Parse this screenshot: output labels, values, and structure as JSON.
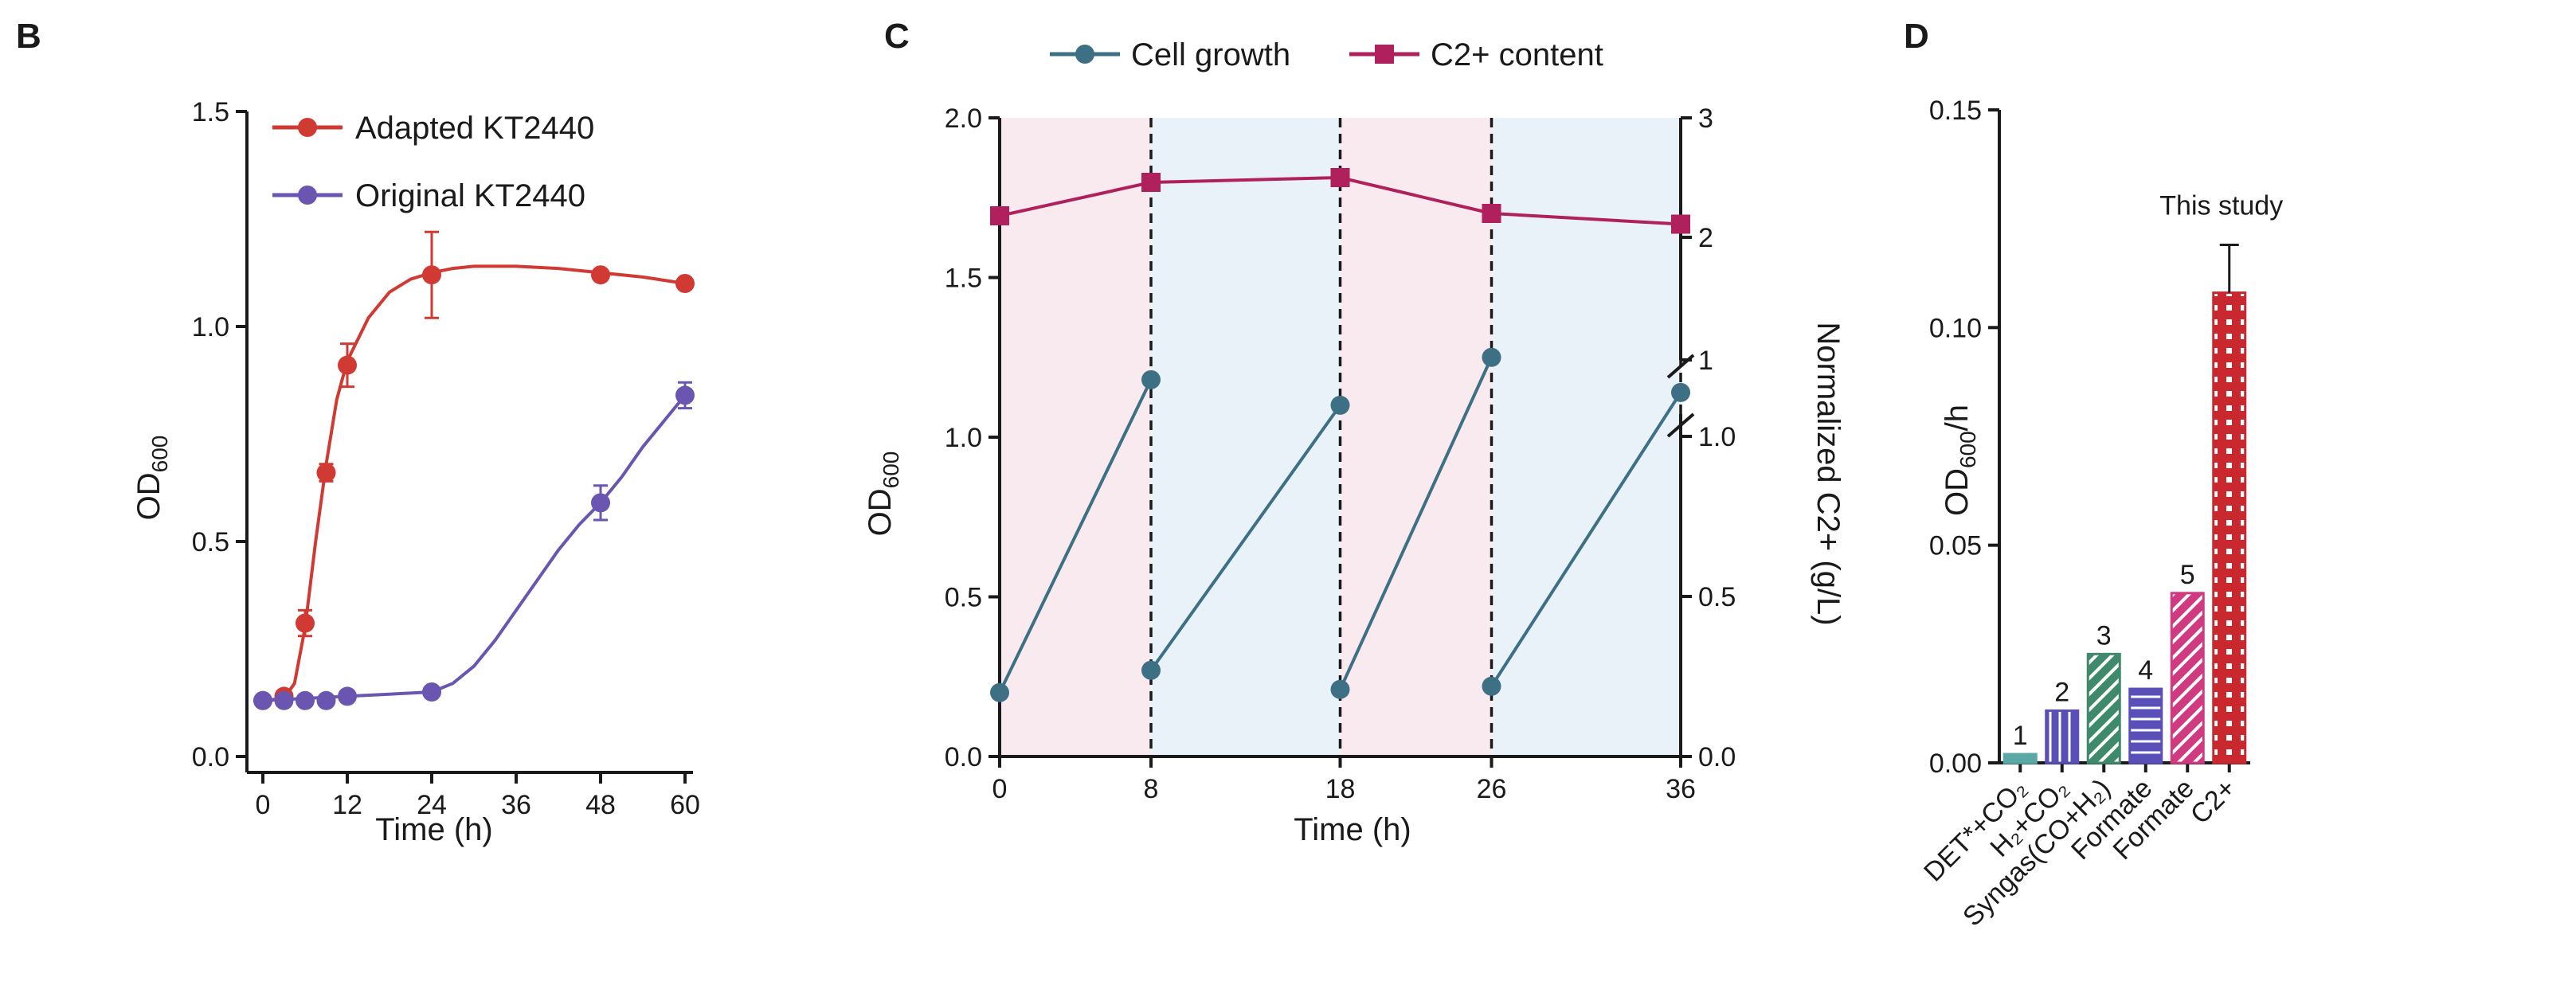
{
  "figure": {
    "panels": [
      "B",
      "C",
      "D"
    ]
  },
  "colors": {
    "adapted": "#d13a32",
    "original": "#6a56b0",
    "cell_growth": "#3d7085",
    "c2_content": "#b0205c",
    "shade_pink": "#f9eaf0",
    "shade_blue": "#e9f1f9",
    "bar1": "#5aa9a7",
    "bar2": "#5a4fb8",
    "bar3": "#3f8a6c",
    "bar4": "#5a4fb8",
    "bar5": "#d03a80",
    "bar6": "#c8282e"
  },
  "chart_data": [
    {
      "id": "B",
      "type": "line",
      "xlabel": "Time (h)",
      "ylabel": "OD600",
      "ylabel_main": "OD",
      "ylabel_sub": "600",
      "xlim": [
        0,
        60
      ],
      "ylim": [
        0,
        1.5
      ],
      "xticks": [
        0,
        12,
        24,
        36,
        48,
        60
      ],
      "xtick_labels": [
        "0",
        "12",
        "24",
        "36",
        "48",
        "60"
      ],
      "yticks": [
        0,
        0.5,
        1.0,
        1.5
      ],
      "ytick_labels": [
        "0.0",
        "0.5",
        "1.0",
        "1.5"
      ],
      "legend_position": "top-left",
      "series": [
        {
          "name": "Adapted KT2440",
          "x": [
            0,
            3,
            6,
            9,
            12,
            24,
            48,
            60
          ],
          "y": [
            0.13,
            0.14,
            0.31,
            0.66,
            0.91,
            1.12,
            1.12,
            1.1
          ],
          "err": [
            0.01,
            0.01,
            0.03,
            0.02,
            0.05,
            0.1,
            0.01,
            0.01
          ],
          "curve_x": [
            0,
            3,
            4.5,
            6,
            7.5,
            9,
            10.5,
            12,
            15,
            18,
            21,
            24,
            27,
            30,
            33,
            36,
            42,
            48,
            54,
            60
          ],
          "curve_y": [
            0.13,
            0.135,
            0.17,
            0.3,
            0.5,
            0.68,
            0.83,
            0.92,
            1.02,
            1.08,
            1.11,
            1.125,
            1.135,
            1.14,
            1.14,
            1.14,
            1.135,
            1.125,
            1.115,
            1.1
          ]
        },
        {
          "name": "Original KT2440",
          "x": [
            0,
            3,
            6,
            9,
            12,
            24,
            48,
            60
          ],
          "y": [
            0.13,
            0.13,
            0.13,
            0.13,
            0.14,
            0.15,
            0.59,
            0.84
          ],
          "err": [
            0.01,
            0.01,
            0.01,
            0.01,
            0.01,
            0.01,
            0.04,
            0.03
          ],
          "curve_x": [
            0,
            6,
            12,
            18,
            24,
            27,
            30,
            33,
            36,
            39,
            42,
            45,
            48,
            51,
            54,
            57,
            60
          ],
          "curve_y": [
            0.13,
            0.135,
            0.14,
            0.145,
            0.15,
            0.17,
            0.21,
            0.27,
            0.34,
            0.41,
            0.48,
            0.54,
            0.59,
            0.65,
            0.72,
            0.78,
            0.84
          ]
        }
      ]
    },
    {
      "id": "C",
      "type": "line",
      "xlabel": "Time (h)",
      "ylabel": "OD600",
      "ylabel_main": "OD",
      "ylabel_sub": "600",
      "y2label": "Normalized C2+ (g/L)",
      "xlim": [
        0,
        36
      ],
      "ylim": [
        0,
        2.0
      ],
      "xticks": [
        0,
        8,
        18,
        26,
        36
      ],
      "xtick_labels": [
        "0",
        "8",
        "18",
        "26",
        "36"
      ],
      "yticks": [
        0,
        0.5,
        1.0,
        1.5,
        2.0
      ],
      "ytick_labels": [
        "0.0",
        "0.5",
        "1.0",
        "1.5",
        "2.0"
      ],
      "y2_axis_break": true,
      "y2_lower_range": [
        0,
        1.0
      ],
      "y2_upper_range": [
        1,
        3
      ],
      "y2_lower_ticks": [
        0,
        0.5,
        1.0
      ],
      "y2_lower_tick_labels": [
        "0.0",
        "0.5",
        "1.0"
      ],
      "y2_upper_ticks": [
        1,
        2,
        3
      ],
      "y2_upper_tick_labels": [
        "1",
        "2",
        "3"
      ],
      "grid": false,
      "legend_position": "top",
      "vertical_dashed_lines_at_x": [
        8,
        18,
        26,
        36
      ],
      "shaded_bands": [
        {
          "x": [
            0,
            8
          ],
          "tone": "pink"
        },
        {
          "x": [
            8,
            18
          ],
          "tone": "blue"
        },
        {
          "x": [
            18,
            26
          ],
          "tone": "pink"
        },
        {
          "x": [
            26,
            36
          ],
          "tone": "blue"
        }
      ],
      "series": [
        {
          "name": "Cell growth",
          "axis": "left",
          "marker": "circle",
          "segments": [
            {
              "x": [
                0,
                8
              ],
              "y": [
                0.2,
                1.18
              ]
            },
            {
              "x": [
                8,
                18
              ],
              "y": [
                0.27,
                1.1
              ]
            },
            {
              "x": [
                18,
                26
              ],
              "y": [
                0.21,
                1.25
              ]
            },
            {
              "x": [
                26,
                36
              ],
              "y": [
                0.22,
                1.14
              ]
            }
          ]
        },
        {
          "name": "C2+ content",
          "axis": "right",
          "marker": "square",
          "x": [
            0,
            8,
            18,
            26,
            36
          ],
          "y": [
            2.18,
            2.46,
            2.5,
            2.2,
            2.11
          ]
        }
      ]
    },
    {
      "id": "D",
      "type": "bar",
      "ylabel": "OD600/h",
      "ylabel_main": "OD",
      "ylabel_sub": "600",
      "ylabel_tail": "/h",
      "ylim": [
        0,
        0.15
      ],
      "yticks": [
        0,
        0.05,
        0.1,
        0.15
      ],
      "ytick_labels": [
        "0.00",
        "0.05",
        "0.10",
        "0.15"
      ],
      "categories": [
        "DET*+CO₂",
        "H₂+CO₂",
        "Syngas(CO+H₂)",
        "Formate",
        "Formate",
        "C2+"
      ],
      "values": [
        0.002,
        0.012,
        0.025,
        0.017,
        0.039,
        0.108
      ],
      "errors": [
        null,
        null,
        null,
        null,
        null,
        0.011
      ],
      "bar_labels": [
        "1",
        "2",
        "3",
        "4",
        "5",
        ""
      ],
      "patterns": [
        "solid",
        "vertical",
        "diagonal",
        "horizontal",
        "diagonal",
        "grid"
      ],
      "annotation": "This study"
    }
  ]
}
